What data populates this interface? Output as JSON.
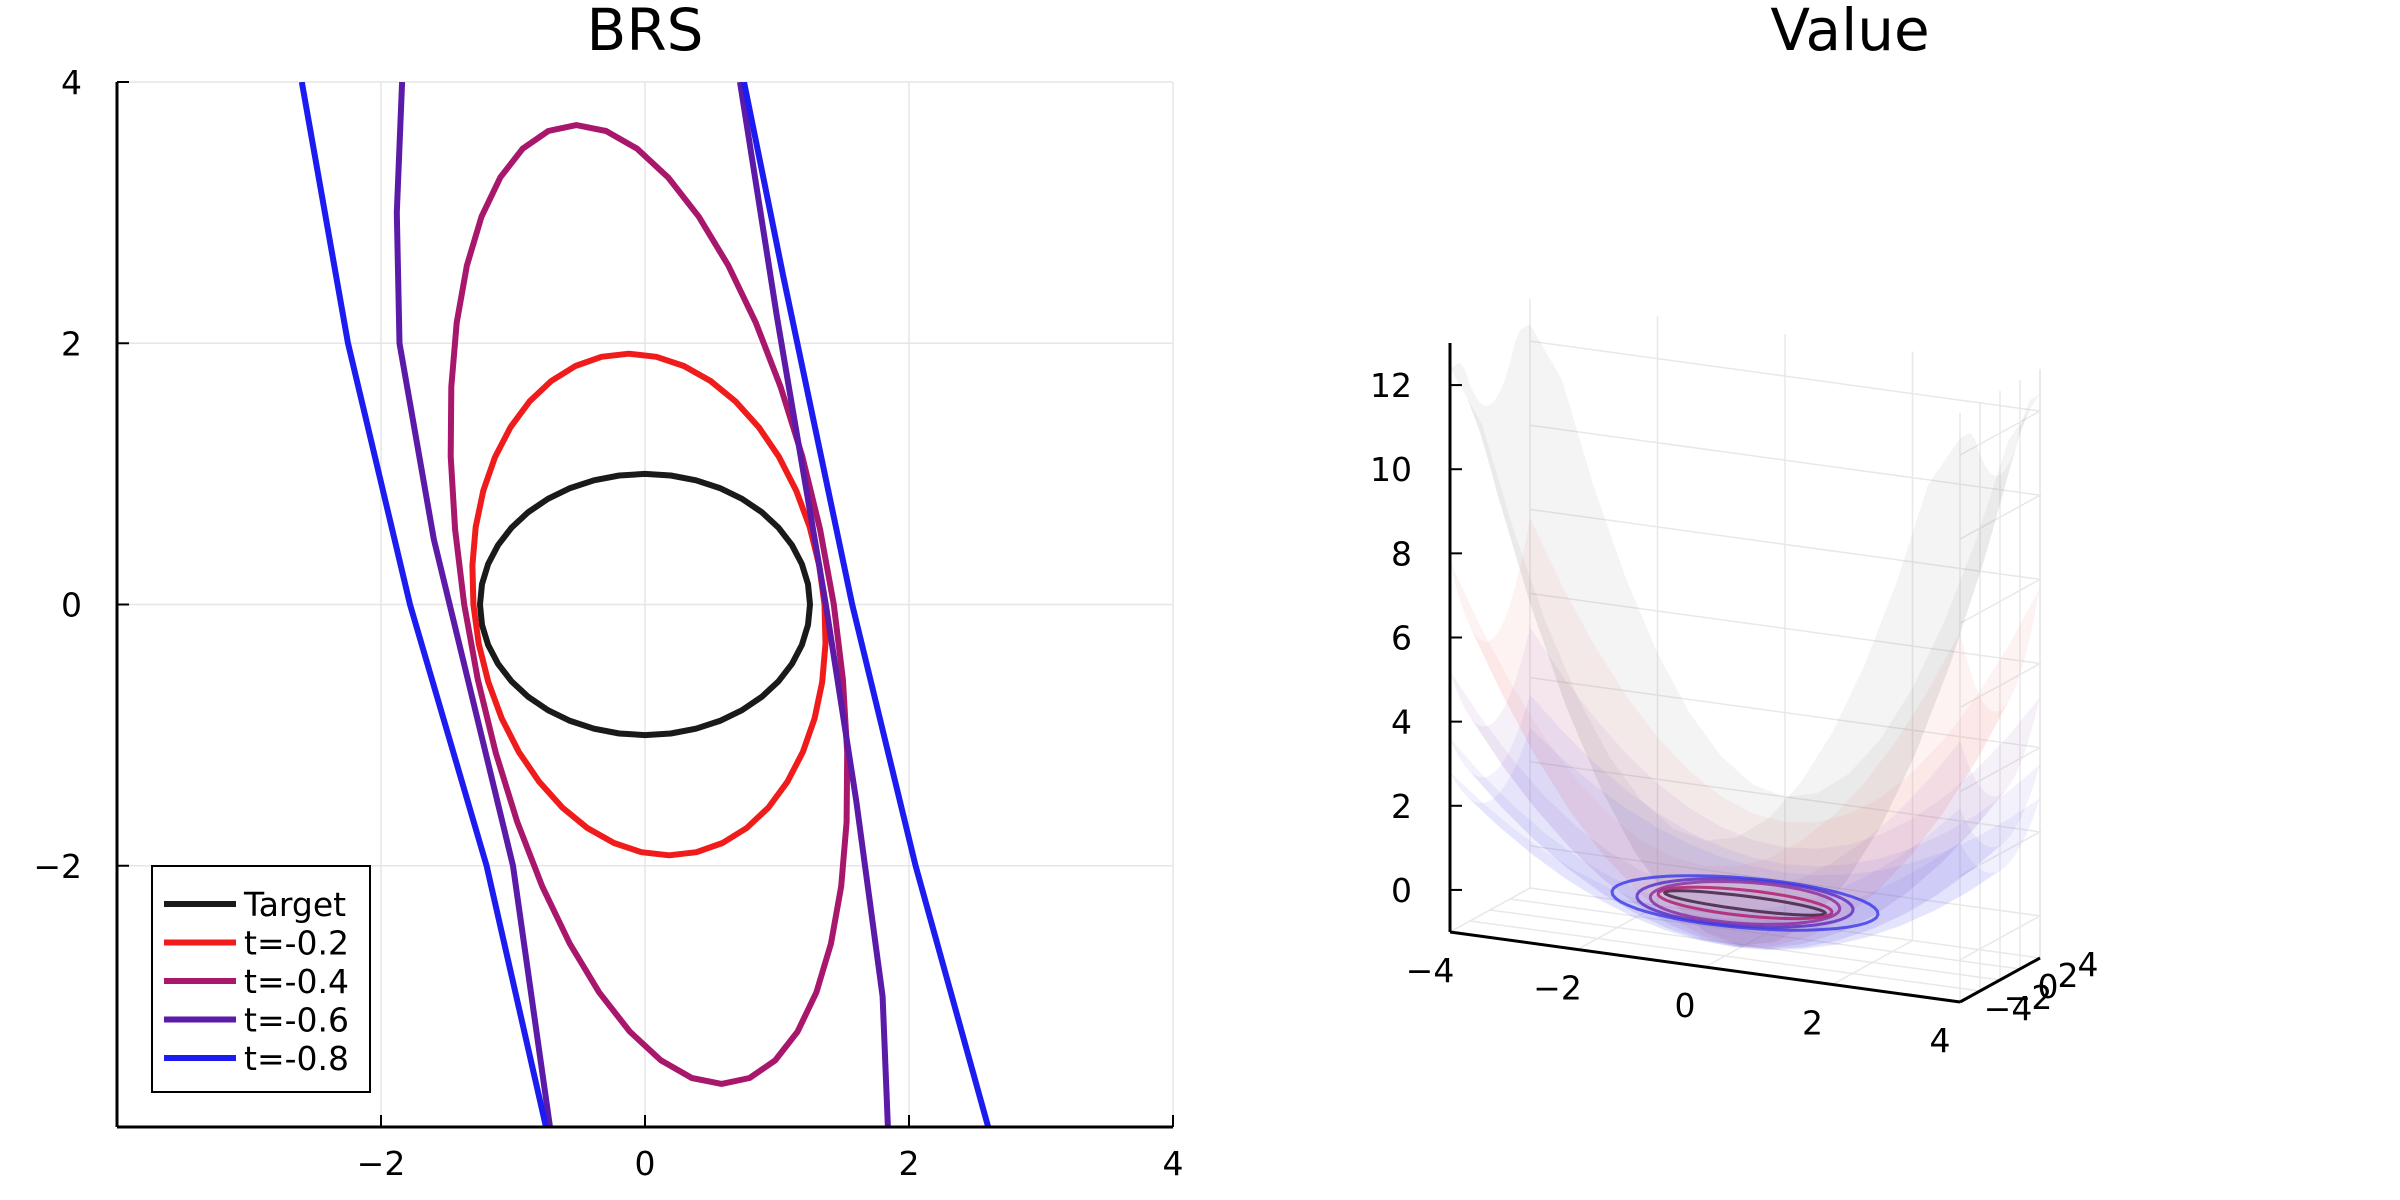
{
  "chart_data": [
    {
      "type": "line",
      "title": "BRS",
      "xlabel": "",
      "ylabel": "",
      "xlim": [
        -4,
        4
      ],
      "ylim": [
        -4,
        4
      ],
      "xticks": [
        -2,
        0,
        2,
        4
      ],
      "xtick_labels": [
        "−2",
        "0",
        "2",
        "4"
      ],
      "yticks": [
        -2,
        0,
        2,
        4
      ],
      "ytick_labels": [
        "−2",
        "0",
        "2",
        "4"
      ],
      "grid": true,
      "legend_position": "bottom-left",
      "series": [
        {
          "name": "Target",
          "color": "#1a1a1a",
          "kind": "closed",
          "cx": 0,
          "cy": 0,
          "rx": 1.25,
          "ry": 1.0,
          "shear": 0
        },
        {
          "name": "t=-0.2",
          "color": "#f01c1c",
          "kind": "closed",
          "cx": 0.03,
          "cy": 0,
          "rx": 1.33,
          "ry": 1.92,
          "shear": -0.08
        },
        {
          "name": "t=-0.4",
          "color": "#a8176b",
          "kind": "closed",
          "cx": 0.03,
          "cy": 0,
          "rx": 1.4,
          "ry": 3.67,
          "shear": -0.15
        },
        {
          "name": "t=-0.6",
          "color": "#5b1aa8",
          "kind": "open",
          "left": [
            [
              -1.84,
              4.0
            ],
            [
              -1.88,
              3.0
            ],
            [
              -1.86,
              2.0
            ],
            [
              -1.6,
              0.5
            ],
            [
              -1.36,
              -0.5
            ],
            [
              -1.0,
              -2.0
            ],
            [
              -0.72,
              -4.0
            ]
          ],
          "right": [
            [
              0.72,
              4.0
            ],
            [
              1.0,
              2.2
            ],
            [
              1.37,
              0.0
            ],
            [
              1.6,
              -1.5
            ],
            [
              1.8,
              -3.0
            ],
            [
              1.84,
              -4.0
            ]
          ]
        },
        {
          "name": "t=-0.8",
          "color": "#1c1cf0",
          "kind": "open",
          "left": [
            [
              -2.6,
              4.0
            ],
            [
              -2.25,
              2.0
            ],
            [
              -1.78,
              0.0
            ],
            [
              -1.2,
              -2.0
            ],
            [
              -0.75,
              -4.0
            ]
          ],
          "right": [
            [
              0.75,
              4.0
            ],
            [
              1.05,
              2.5
            ],
            [
              1.57,
              0.0
            ],
            [
              2.05,
              -2.0
            ],
            [
              2.6,
              -4.0
            ]
          ]
        }
      ]
    },
    {
      "type": "surface3d",
      "title": "Value",
      "xlim": [
        -4,
        4
      ],
      "ylim": [
        -4,
        4
      ],
      "zlim": [
        -1,
        13
      ],
      "xtick_labels": [
        "−4",
        "−2",
        "0",
        "2",
        "4"
      ],
      "ytick_labels": [
        "−4",
        "−2",
        "0",
        "2",
        "4"
      ],
      "ztick_labels": [
        "0",
        "2",
        "4",
        "6",
        "8",
        "10",
        "12"
      ],
      "zticks": [
        0,
        2,
        4,
        6,
        8,
        10,
        12
      ],
      "grid": true,
      "surfaces": [
        {
          "name": "Target",
          "color": "#808080",
          "scale_x": 0.6,
          "scale_y": 0.15,
          "offset": -1.0,
          "clip": 12.4
        },
        {
          "name": "t=-0.2",
          "color": "#f07878",
          "scale_x": 0.32,
          "scale_y": 0.12,
          "offset": -1.0,
          "clip": 10.4
        },
        {
          "name": "t=-0.4",
          "color": "#a060c0",
          "scale_x": 0.22,
          "scale_y": 0.09,
          "offset": -1.0,
          "clip": 8.6
        },
        {
          "name": "t=-0.6",
          "color": "#7060e0",
          "scale_x": 0.16,
          "scale_y": 0.07,
          "offset": -1.0,
          "clip": 7.8
        },
        {
          "name": "t=-0.8",
          "color": "#6060f0",
          "scale_x": 0.13,
          "scale_y": 0.06,
          "offset": -1.0,
          "clip": 7.2
        }
      ]
    }
  ]
}
